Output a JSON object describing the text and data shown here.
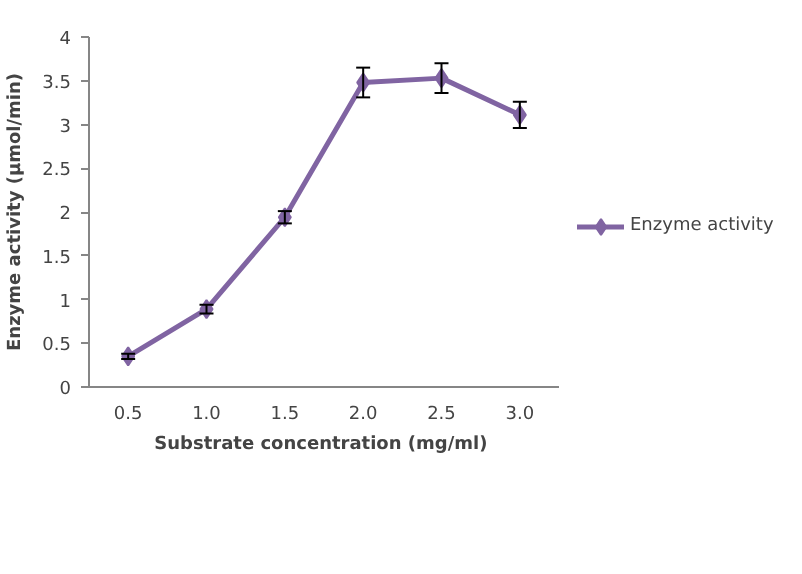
{
  "chart_data": {
    "type": "line",
    "xlabel": "Substrate concentration  (mg/ml)",
    "ylabel": "Enzyme activity (µmol/min)",
    "categories": [
      "0.5",
      "1.0",
      "1.5",
      "2.0",
      "2.5",
      "3.0"
    ],
    "series": [
      {
        "name": "Enzyme activity",
        "color": "#8064a2",
        "values": [
          0.35,
          0.89,
          1.94,
          3.48,
          3.53,
          3.11
        ],
        "errors": [
          0.03,
          0.05,
          0.07,
          0.17,
          0.17,
          0.15
        ]
      }
    ],
    "ylim": [
      0,
      4
    ],
    "yticks": [
      0,
      {
        "value": 0.5,
        "label": "0.5"
      },
      1,
      {
        "value": 1.5,
        "label": "1.5"
      },
      2,
      {
        "value": 2.5,
        "label": "2.5"
      },
      3,
      {
        "value": 3.5,
        "label": "3.5"
      },
      4
    ],
    "marker": "diamond",
    "line_style": "solid",
    "grid": false,
    "legend": "right"
  }
}
